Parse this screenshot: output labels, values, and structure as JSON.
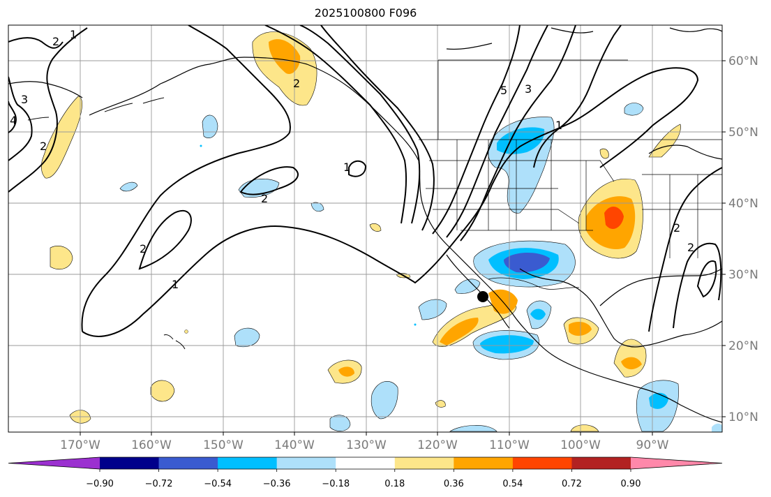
{
  "title": "2025100800 F096",
  "map": {
    "lat_labels": [
      "60°N",
      "50°N",
      "40°N",
      "30°N",
      "20°N",
      "10°N"
    ],
    "lon_labels": [
      "170°W",
      "160°W",
      "150°W",
      "140°W",
      "130°W",
      "120°W",
      "110°W",
      "100°W",
      "90°W"
    ],
    "contour_labels": [
      "2",
      "1",
      "3",
      "4",
      "2",
      "2",
      "1",
      "2",
      "2",
      "1",
      "5",
      "3",
      "1",
      "2",
      "2"
    ],
    "marker": "storm-center"
  },
  "colorbar": {
    "colors": [
      "#9b30d0",
      "#00008b",
      "#3a5bd0",
      "#00bfff",
      "#aee0fa",
      "#ffffff",
      "#fde68a",
      "#ffa500",
      "#ff4500",
      "#b22222",
      "#ff88aa"
    ],
    "labels": [
      "−0.90",
      "−0.72",
      "−0.54",
      "−0.36",
      "−0.18",
      "0.18",
      "0.36",
      "0.54",
      "0.72",
      "0.90"
    ]
  }
}
